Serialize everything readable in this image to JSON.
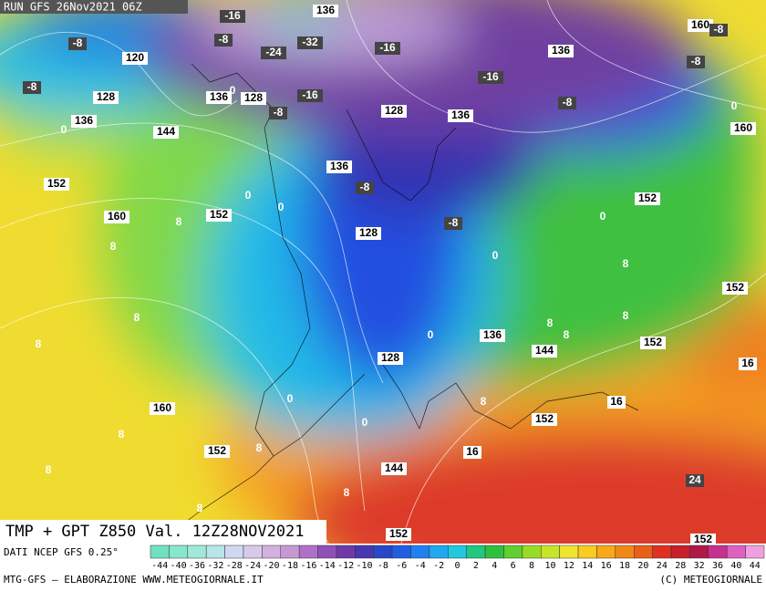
{
  "header": {
    "run": "RUN GFS 26Nov2021 06Z"
  },
  "title": "TMP + GPT Z850 Val. 12Z28NOV2021",
  "source": "DATI NCEP GFS 0.25°",
  "scale": [
    -44,
    -40,
    -36,
    -32,
    -28,
    -24,
    -20,
    -18,
    -16,
    -14,
    -12,
    -10,
    -8,
    -6,
    -4,
    -2,
    0,
    2,
    4,
    6,
    8,
    10,
    12,
    14,
    16,
    18,
    20,
    24,
    28,
    32,
    36,
    40,
    44
  ],
  "footer": {
    "left": "MTG-GFS – ELABORAZIONE WWW.METEOGIORNALE.IT",
    "right": "(C) METEOGIORNALE"
  },
  "map_labels": [
    "-16",
    "136",
    "-32",
    "-24",
    "-8",
    "-8",
    "120",
    "-8",
    "128",
    "136",
    "0",
    "128",
    "-16",
    "-16",
    "136",
    "-16",
    "160",
    "-8",
    "-8",
    "136",
    "0",
    "144",
    "128",
    "136",
    "-8",
    "-8",
    "0",
    "160",
    "136",
    "-8",
    "152",
    "0",
    "0",
    "152",
    "160",
    "8",
    "-8",
    "152",
    "0",
    "128",
    "8",
    "0",
    "8",
    "152",
    "8",
    "8",
    "136",
    "0",
    "8",
    "8",
    "8",
    "144",
    "152",
    "128",
    "16",
    "0",
    "8",
    "16",
    "160",
    "0",
    "152",
    "8",
    "152",
    "8",
    "16",
    "8",
    "144",
    "24",
    "8",
    "8",
    "152",
    "152"
  ]
}
